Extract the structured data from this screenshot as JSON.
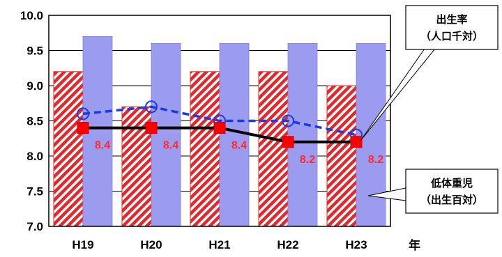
{
  "chart_data": {
    "type": "bar",
    "categories": [
      "H19",
      "H20",
      "H21",
      "H22",
      "H23"
    ],
    "ylim": [
      7.0,
      10.0
    ],
    "yticks": [
      "7.0",
      "7.5",
      "8.0",
      "8.5",
      "9.0",
      "9.5",
      "10.0"
    ],
    "xlabel": "年",
    "grid": true,
    "bar_series": [
      {
        "values": [
          9.2,
          8.7,
          9.2,
          9.2,
          9.0
        ],
        "color": "#e8262a",
        "pattern": "red-white-hatch"
      },
      {
        "values": [
          9.7,
          9.6,
          9.6,
          9.6,
          9.6
        ],
        "color": "#9b9bf0"
      }
    ],
    "line_series": [
      {
        "name": "出生率（人口千対）",
        "values": [
          8.6,
          8.7,
          8.5,
          8.5,
          8.3
        ],
        "color": "#1a3ce6",
        "style": "dashed",
        "marker": "open-circle"
      },
      {
        "name": "低体重児（出生百対）",
        "values": [
          8.4,
          8.4,
          8.4,
          8.2,
          8.2
        ],
        "color": "#000000",
        "style": "solid",
        "marker": "red-square"
      }
    ],
    "data_labels": [
      "8.4",
      "8.4",
      "8.4",
      "8.2",
      "8.2"
    ]
  },
  "callouts": {
    "birth_rate": {
      "line1": "出生率",
      "line2": "（人口千対）"
    },
    "low_birth_weight": {
      "line1": "低体重児",
      "line2": "（出生百対）"
    }
  }
}
